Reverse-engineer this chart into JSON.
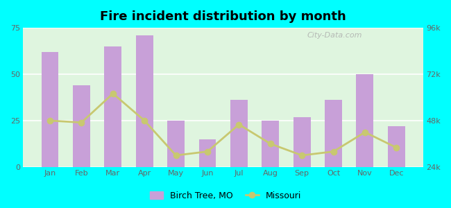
{
  "title": "Fire incident distribution by month",
  "months": [
    "Jan",
    "Feb",
    "Mar",
    "Apr",
    "May",
    "Jun",
    "Jul",
    "Aug",
    "Sep",
    "Oct",
    "Nov",
    "Dec"
  ],
  "birch_tree": [
    62,
    44,
    65,
    71,
    25,
    15,
    36,
    25,
    27,
    36,
    50,
    22
  ],
  "missouri_right": [
    48000,
    47000,
    62000,
    48000,
    30000,
    32000,
    46000,
    36000,
    30000,
    32000,
    42000,
    34000
  ],
  "bar_color": "#c8a0d8",
  "line_color": "#c8c870",
  "background_color": "#00ffff",
  "plot_bg_top": "#e8f5e8",
  "plot_bg_bottom": "#f5fff5",
  "ylim_left": [
    0,
    75
  ],
  "ylim_right": [
    24000,
    96000
  ],
  "yticks_left": [
    0,
    25,
    50,
    75
  ],
  "yticks_right": [
    24000,
    48000,
    72000,
    96000
  ],
  "ytick_labels_right": [
    "24k",
    "48k",
    "72k",
    "96k"
  ],
  "legend_birch": "Birch Tree, MO",
  "legend_missouri": "Missouri",
  "watermark": "City-Data.com"
}
